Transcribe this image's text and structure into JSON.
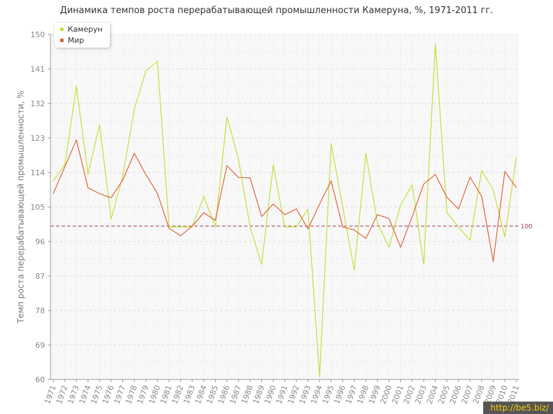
{
  "chart_data": {
    "type": "line",
    "title": "Динамика темпов роста перерабатывающей промышленности Камеруна, %, 1971-2011 гг.",
    "ylabel": "Темп роста перерабатывающей промышленности, %",
    "xlabel": "",
    "ylim": [
      60,
      150
    ],
    "yticks": [
      60,
      69,
      78,
      87,
      96,
      105,
      114,
      123,
      132,
      141,
      150
    ],
    "x": [
      "1971",
      "1972",
      "1973",
      "1974",
      "1975",
      "1976",
      "1977",
      "1978",
      "1979",
      "1980",
      "1981",
      "1982",
      "1983",
      "1984",
      "1985",
      "1986",
      "1987",
      "1988",
      "1989",
      "1990",
      "1991",
      "1992",
      "1993",
      "1994",
      "1995",
      "1996",
      "1997",
      "1998",
      "1999",
      "2000",
      "2001",
      "2002",
      "2003",
      "2004",
      "2005",
      "2006",
      "2007",
      "2008",
      "2009",
      "2010",
      "2011"
    ],
    "series": [
      {
        "name": "Камерун",
        "color": "#c3df3a",
        "values": [
          111.8,
          116.0,
          136.5,
          113.5,
          126.5,
          101.8,
          113.0,
          130.5,
          140.5,
          143.0,
          99.8,
          99.8,
          99.8,
          107.8,
          99.8,
          128.5,
          117.5,
          99.8,
          90.0,
          116.0,
          99.8,
          99.8,
          104.5,
          60.7,
          121.5,
          105.0,
          88.5,
          119.0,
          100.8,
          94.5,
          105.5,
          110.8,
          90.0,
          147.5,
          103.5,
          99.8,
          96.3,
          114.5,
          109.5,
          97.2,
          118.0
        ]
      },
      {
        "name": "Мир",
        "color": "#e0623a",
        "values": [
          108.5,
          115.5,
          122.5,
          110.0,
          108.5,
          107.4,
          112.0,
          119.0,
          113.5,
          108.5,
          99.5,
          97.5,
          100.0,
          103.5,
          101.5,
          115.8,
          112.7,
          112.6,
          102.5,
          105.8,
          103.0,
          104.5,
          99.3,
          105.8,
          111.8,
          99.8,
          99.0,
          96.8,
          103.0,
          102.0,
          94.5,
          102.5,
          111.0,
          113.5,
          107.5,
          104.5,
          112.8,
          107.8,
          90.8,
          114.3,
          110.0
        ]
      }
    ],
    "reference_line": {
      "value": 100,
      "label": "100",
      "color": "#a0374a"
    },
    "grid": true,
    "legend_position": "top-left"
  },
  "watermark": "http://be5.biz/"
}
